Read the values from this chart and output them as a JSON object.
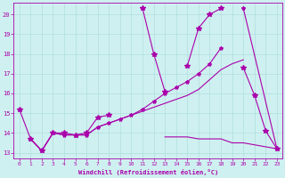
{
  "xlabel": "Windchill (Refroidissement éolien,°C)",
  "background_color": "#cff0f0",
  "grid_color": "#b0dede",
  "line_color": "#aa00aa",
  "xlim": [
    -0.5,
    23.5
  ],
  "ylim": [
    12.7,
    20.6
  ],
  "yticks": [
    13,
    14,
    15,
    16,
    17,
    18,
    19,
    20
  ],
  "xticks": [
    0,
    1,
    2,
    3,
    4,
    5,
    6,
    7,
    8,
    9,
    10,
    11,
    12,
    13,
    14,
    15,
    16,
    17,
    18,
    19,
    20,
    21,
    22,
    23
  ],
  "series_zigzag": {
    "segments": [
      {
        "x": [
          0,
          1,
          2,
          3,
          4,
          5,
          6,
          7,
          8
        ],
        "y": [
          15.2,
          13.7,
          13.1,
          14.0,
          14.0,
          13.9,
          14.0,
          14.8,
          14.9
        ]
      },
      {
        "x": [
          11,
          12,
          13
        ],
        "y": [
          20.3,
          18.0,
          16.1
        ]
      },
      {
        "x": [
          15,
          16,
          17,
          18
        ],
        "y": [
          17.4,
          19.3,
          20.0,
          20.3
        ]
      },
      {
        "x": [
          20,
          21,
          22,
          23
        ],
        "y": [
          17.3,
          15.9,
          14.1,
          13.2
        ]
      }
    ]
  },
  "series_flat": {
    "segments": [
      {
        "x": [
          13,
          14,
          15,
          16,
          17,
          18,
          19,
          20,
          21,
          22,
          23
        ],
        "y": [
          13.8,
          13.8,
          13.8,
          13.7,
          13.7,
          13.7,
          13.5,
          13.5,
          13.4,
          13.3,
          13.2
        ]
      }
    ]
  },
  "series_smooth": {
    "segments": [
      {
        "x": [
          1,
          2,
          3,
          4,
          5,
          6,
          7,
          8,
          9,
          10,
          11,
          12,
          13,
          14,
          15,
          16,
          17,
          18,
          19,
          20
        ],
        "y": [
          13.7,
          13.1,
          14.0,
          13.9,
          13.9,
          13.9,
          14.3,
          14.5,
          14.7,
          14.9,
          15.1,
          15.3,
          15.5,
          15.7,
          15.9,
          16.2,
          16.7,
          17.2,
          17.5,
          17.7
        ]
      },
      {
        "x": [
          23
        ],
        "y": [
          13.2
        ]
      }
    ]
  },
  "series_marked": {
    "segments": [
      {
        "x": [
          1,
          2,
          3,
          4,
          5,
          6,
          7,
          8,
          9,
          10,
          11,
          12,
          13,
          14,
          15,
          16,
          17,
          18
        ],
        "y": [
          13.7,
          13.1,
          14.0,
          13.9,
          13.9,
          13.9,
          14.3,
          14.5,
          14.7,
          14.9,
          15.2,
          15.6,
          16.0,
          16.3,
          16.6,
          17.0,
          17.5,
          18.3
        ]
      },
      {
        "x": [
          20,
          23
        ],
        "y": [
          20.3,
          13.2
        ]
      }
    ]
  }
}
